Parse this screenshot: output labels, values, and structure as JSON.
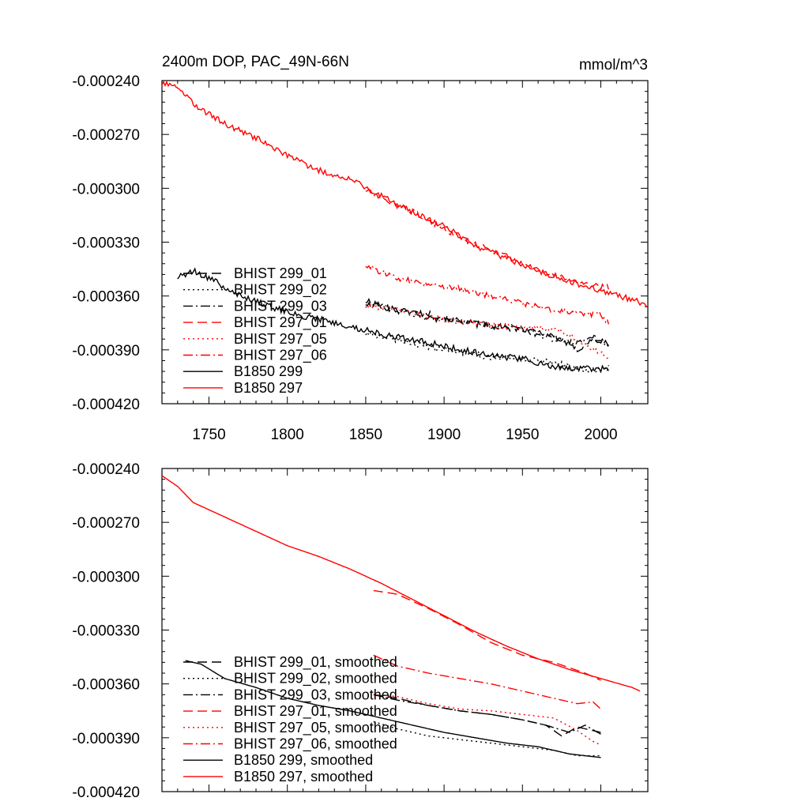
{
  "figure": {
    "title_left": "2400m DOP, PAC_49N-66N",
    "title_right": "mmol/m^3"
  },
  "chart_data": [
    {
      "type": "line",
      "panel": "raw",
      "xlim": [
        1720,
        2030
      ],
      "ylim": [
        -0.00042,
        -0.00024
      ],
      "xticks": [
        1750,
        1800,
        1850,
        1900,
        1950,
        2000
      ],
      "xtick_labels": [
        "1750",
        "1800",
        "1850",
        "1900",
        "1950",
        "2000"
      ],
      "yticks": [
        -0.00024,
        -0.00027,
        -0.0003,
        -0.00033,
        -0.00036,
        -0.00039,
        -0.00042
      ],
      "ytick_labels": [
        "-0.000240",
        "-0.000270",
        "-0.000300",
        "-0.000330",
        "-0.000360",
        "-0.000390",
        "-0.000420"
      ],
      "legend_position": "lower-left",
      "series": [
        {
          "name": "BHIST 299_01",
          "color": "#000000",
          "dash": "long-dash",
          "noise": 1.8e-06,
          "x": [
            1850,
            1870,
            1890,
            1910,
            1930,
            1950,
            1970,
            1985,
            1995,
            2005
          ],
          "y": [
            -0.000363,
            -0.000368,
            -0.00037,
            -0.000374,
            -0.000377,
            -0.000378,
            -0.000382,
            -0.00039,
            -0.000384,
            -0.000387
          ]
        },
        {
          "name": "BHIST 299_02",
          "color": "#000000",
          "dash": "dot",
          "noise": 1.8e-06,
          "x": [
            1850,
            1870,
            1890,
            1910,
            1930,
            1950,
            1970,
            1990,
            2005
          ],
          "y": [
            -0.000381,
            -0.000384,
            -0.000389,
            -0.000391,
            -0.000394,
            -0.000395,
            -0.000397,
            -0.000402,
            -0.0004
          ]
        },
        {
          "name": "BHIST 299_03",
          "color": "#000000",
          "dash": "dash-dot",
          "noise": 1.8e-06,
          "x": [
            1850,
            1870,
            1890,
            1910,
            1930,
            1950,
            1970,
            1985,
            1995,
            2005
          ],
          "y": [
            -0.000364,
            -0.000368,
            -0.000372,
            -0.000374,
            -0.000377,
            -0.000379,
            -0.000384,
            -0.000386,
            -0.000382,
            -0.000388
          ]
        },
        {
          "name": "BHIST 297_01",
          "color": "#ff0000",
          "dash": "long-dash",
          "noise": 1.6e-06,
          "x": [
            1850,
            1860,
            1880,
            1900,
            1920,
            1940,
            1960,
            1980,
            2000,
            2005
          ],
          "y": [
            -0.000301,
            -0.000306,
            -0.000313,
            -0.000323,
            -0.000331,
            -0.000338,
            -0.000346,
            -0.000351,
            -0.000355,
            -0.000355
          ]
        },
        {
          "name": "BHIST 297_05",
          "color": "#ff0000",
          "dash": "dot",
          "noise": 1.6e-06,
          "x": [
            1850,
            1870,
            1890,
            1910,
            1930,
            1950,
            1970,
            1985,
            2000,
            2005
          ],
          "y": [
            -0.000366,
            -0.000367,
            -0.000372,
            -0.000374,
            -0.000376,
            -0.000378,
            -0.000378,
            -0.000384,
            -0.000392,
            -0.000395
          ]
        },
        {
          "name": "BHIST 297_06",
          "color": "#ff0000",
          "dash": "dash-dot",
          "noise": 1.6e-06,
          "x": [
            1850,
            1870,
            1890,
            1910,
            1930,
            1950,
            1970,
            1985,
            2000,
            2005
          ],
          "y": [
            -0.000343,
            -0.00035,
            -0.000354,
            -0.000356,
            -0.00036,
            -0.000364,
            -0.000368,
            -0.00037,
            -0.00037,
            -0.000375
          ]
        },
        {
          "name": "B1850 299",
          "color": "#000000",
          "dash": "solid",
          "noise": 1.8e-06,
          "x": [
            1730,
            1740,
            1750,
            1770,
            1790,
            1810,
            1830,
            1850,
            1870,
            1890,
            1910,
            1930,
            1950,
            1970,
            1985,
            2005
          ],
          "y": [
            -0.00035,
            -0.000346,
            -0.00035,
            -0.00036,
            -0.000366,
            -0.000371,
            -0.000375,
            -0.000379,
            -0.000383,
            -0.000386,
            -0.00039,
            -0.000393,
            -0.000395,
            -0.000399,
            -0.0004,
            -0.000401
          ]
        },
        {
          "name": "B1850 297",
          "color": "#ff0000",
          "dash": "solid",
          "noise": 1.6e-06,
          "x": [
            1720,
            1730,
            1740,
            1760,
            1780,
            1800,
            1820,
            1840,
            1860,
            1880,
            1900,
            1920,
            1940,
            1960,
            1980,
            2000,
            2020,
            2030
          ],
          "y": [
            -0.000242,
            -0.000243,
            -0.000253,
            -0.000264,
            -0.000272,
            -0.000282,
            -0.00029,
            -0.000295,
            -0.000304,
            -0.000313,
            -0.000321,
            -0.000332,
            -0.000339,
            -0.000346,
            -0.000352,
            -0.000357,
            -0.000362,
            -0.000365
          ]
        }
      ]
    },
    {
      "type": "line",
      "panel": "smoothed",
      "xlim": [
        1720,
        2030
      ],
      "ylim": [
        -0.00042,
        -0.00024
      ],
      "xticks": [
        1750,
        1800,
        1850,
        1900,
        1950,
        2000
      ],
      "yticks": [
        -0.00024,
        -0.00027,
        -0.0003,
        -0.00033,
        -0.00036,
        -0.00039,
        -0.00042
      ],
      "ytick_labels": [
        "-0.000240",
        "-0.000270",
        "-0.000300",
        "-0.000330",
        "-0.000360",
        "-0.000390",
        "-0.000420"
      ],
      "legend_position": "lower-left",
      "series": [
        {
          "name": "BHIST 299_01, smoothed",
          "color": "#000000",
          "dash": "long-dash",
          "x": [
            1855,
            1870,
            1890,
            1910,
            1930,
            1950,
            1965,
            1975,
            1985,
            1995,
            2000
          ],
          "y": [
            -0.000366,
            -0.000368,
            -0.000372,
            -0.000375,
            -0.000377,
            -0.00038,
            -0.000383,
            -0.000389,
            -0.000384,
            -0.000386,
            -0.000387
          ]
        },
        {
          "name": "BHIST 299_02, smoothed",
          "color": "#000000",
          "dash": "dot",
          "x": [
            1855,
            1870,
            1890,
            1910,
            1930,
            1950,
            1970,
            1985,
            2000
          ],
          "y": [
            -0.000381,
            -0.000385,
            -0.000389,
            -0.000391,
            -0.000393,
            -0.000395,
            -0.000397,
            -0.0004,
            -0.0004
          ]
        },
        {
          "name": "BHIST 299_03, smoothed",
          "color": "#000000",
          "dash": "dash-dot",
          "x": [
            1855,
            1870,
            1890,
            1910,
            1930,
            1950,
            1965,
            1980,
            1990,
            2000
          ],
          "y": [
            -0.000366,
            -0.000369,
            -0.000372,
            -0.000375,
            -0.000377,
            -0.00038,
            -0.000383,
            -0.000387,
            -0.000383,
            -0.000388
          ]
        },
        {
          "name": "BHIST 297_01, smoothed",
          "color": "#ff0000",
          "dash": "long-dash",
          "x": [
            1855,
            1870,
            1890,
            1910,
            1930,
            1950,
            1970,
            1990,
            2000
          ],
          "y": [
            -0.000308,
            -0.00031,
            -0.000318,
            -0.000327,
            -0.000337,
            -0.000344,
            -0.000348,
            -0.000354,
            -0.000358
          ]
        },
        {
          "name": "BHIST 297_05, smoothed",
          "color": "#ff0000",
          "dash": "dot",
          "x": [
            1855,
            1870,
            1890,
            1910,
            1930,
            1950,
            1970,
            1985,
            1995,
            2000
          ],
          "y": [
            -0.000366,
            -0.000367,
            -0.000371,
            -0.000374,
            -0.000375,
            -0.000377,
            -0.000379,
            -0.000386,
            -0.000392,
            -0.000394
          ]
        },
        {
          "name": "BHIST 297_06, smoothed",
          "color": "#ff0000",
          "dash": "dash-dot",
          "x": [
            1855,
            1870,
            1890,
            1910,
            1930,
            1950,
            1970,
            1985,
            1995,
            2000
          ],
          "y": [
            -0.000344,
            -0.00035,
            -0.000354,
            -0.000357,
            -0.00036,
            -0.000364,
            -0.000368,
            -0.000371,
            -0.00037,
            -0.000374
          ]
        },
        {
          "name": "B1850 299, smoothed",
          "color": "#000000",
          "dash": "solid",
          "x": [
            1735,
            1745,
            1760,
            1780,
            1800,
            1820,
            1840,
            1860,
            1880,
            1900,
            1920,
            1940,
            1960,
            1980,
            2000
          ],
          "y": [
            -0.000347,
            -0.000349,
            -0.000357,
            -0.000362,
            -0.000368,
            -0.000372,
            -0.000375,
            -0.000379,
            -0.000383,
            -0.000387,
            -0.00039,
            -0.000393,
            -0.000395,
            -0.000399,
            -0.000401
          ]
        },
        {
          "name": "B1850 297, smoothed",
          "color": "#ff0000",
          "dash": "solid",
          "x": [
            1720,
            1730,
            1740,
            1760,
            1780,
            1800,
            1820,
            1840,
            1860,
            1880,
            1900,
            1920,
            1940,
            1960,
            1980,
            2000,
            2020,
            2025
          ],
          "y": [
            -0.000244,
            -0.00025,
            -0.000259,
            -0.000267,
            -0.000275,
            -0.000283,
            -0.000289,
            -0.000296,
            -0.000304,
            -0.000313,
            -0.000322,
            -0.000331,
            -0.000339,
            -0.000346,
            -0.000352,
            -0.000357,
            -0.000362,
            -0.000364
          ]
        }
      ]
    }
  ]
}
